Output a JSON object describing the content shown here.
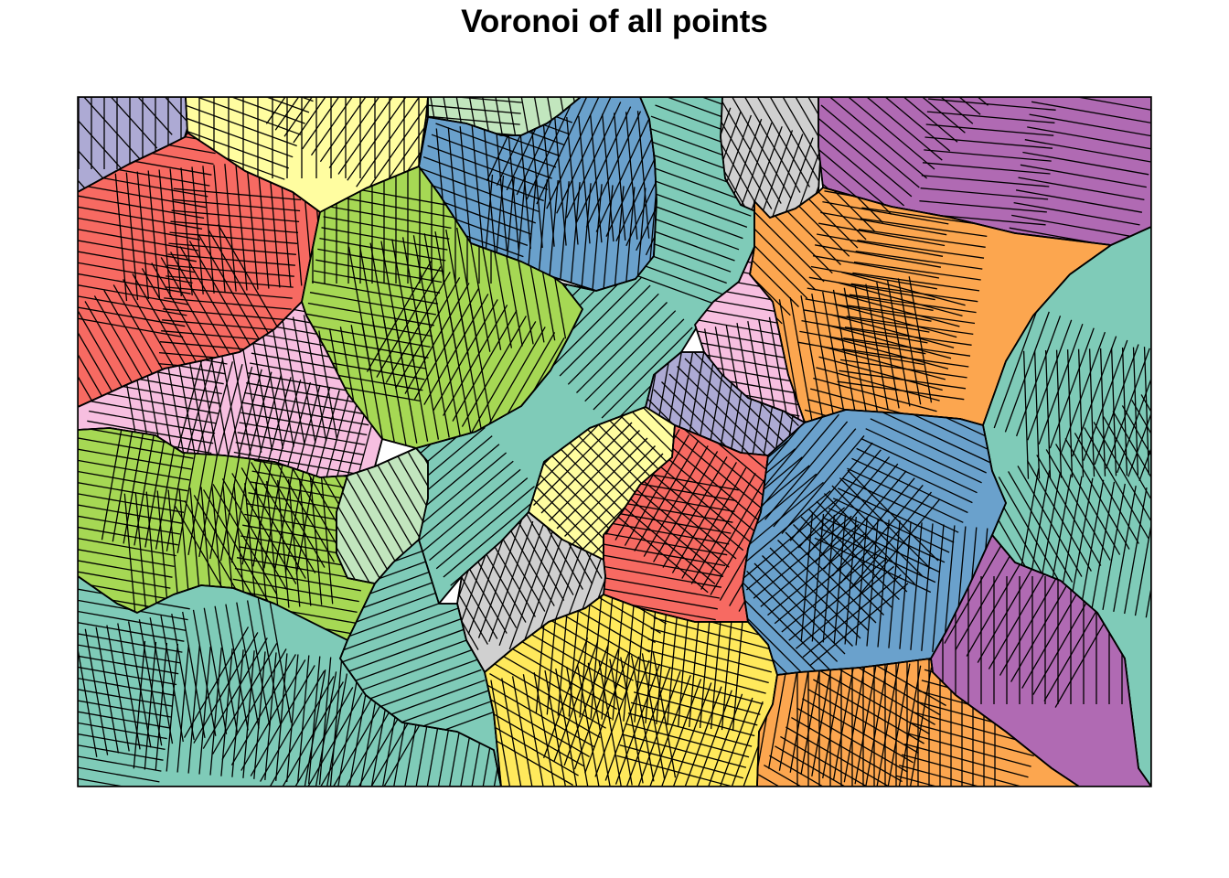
{
  "title": "Voronoi of all points",
  "palette": {
    "teal": "#7fcbb8",
    "purple": "#b06ab3",
    "orange": "#fca64f",
    "blue": "#6aa1cc",
    "red": "#f76a62",
    "lime": "#a6d854",
    "pink": "#f7bfe0",
    "yellow": "#ffe95c",
    "pale_yellow": "#fffda0",
    "gray": "#d0d0d0",
    "lavender": "#adaad4",
    "mint": "#c2e6be",
    "outline": "#000000"
  },
  "diagram": {
    "type": "voronoi",
    "regions": [
      {
        "name": "lavender-top-left",
        "color": "lavender"
      },
      {
        "name": "pale-yellow-top",
        "color": "pale_yellow"
      },
      {
        "name": "mint-top",
        "color": "mint"
      },
      {
        "name": "blue-top",
        "color": "blue"
      },
      {
        "name": "teal-central-band",
        "color": "teal"
      },
      {
        "name": "gray-top",
        "color": "gray"
      },
      {
        "name": "purple-top-right",
        "color": "purple"
      },
      {
        "name": "red-upper-left",
        "color": "red"
      },
      {
        "name": "lime-upper-center",
        "color": "lime"
      },
      {
        "name": "orange-right",
        "color": "orange"
      },
      {
        "name": "pink-center-right",
        "color": "pink"
      },
      {
        "name": "teal-right",
        "color": "teal"
      },
      {
        "name": "pink-left",
        "color": "pink"
      },
      {
        "name": "lavender-center",
        "color": "lavender"
      },
      {
        "name": "lime-lower-left",
        "color": "lime"
      },
      {
        "name": "mint-center",
        "color": "mint"
      },
      {
        "name": "pale-yellow-center",
        "color": "pale_yellow"
      },
      {
        "name": "red-center",
        "color": "red"
      },
      {
        "name": "blue-lower-right",
        "color": "blue"
      },
      {
        "name": "gray-center",
        "color": "gray"
      },
      {
        "name": "purple-lower-right",
        "color": "purple"
      },
      {
        "name": "teal-bottom-left",
        "color": "teal"
      },
      {
        "name": "teal-bottom-center",
        "color": "teal"
      },
      {
        "name": "yellow-bottom",
        "color": "yellow"
      },
      {
        "name": "orange-bottom",
        "color": "orange"
      }
    ]
  }
}
